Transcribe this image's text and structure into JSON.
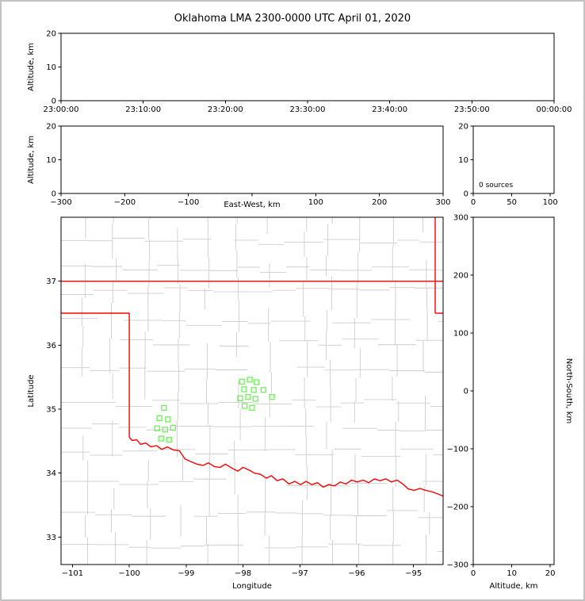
{
  "title": "Oklahoma LMA 2300-0000 UTC April 01, 2020",
  "colors": {
    "background": "#ffffff",
    "frame_border": "#c3c3c3",
    "axis": "#000000",
    "county_line": "#cccccc",
    "state_border": "#ff0000",
    "station_marker": "#6ef05a"
  },
  "chart_data": [
    {
      "id": "altitude_time",
      "type": "scatter",
      "ylabel": "Altitude, km",
      "ylim": [
        0,
        20
      ],
      "yticks": [
        0,
        10,
        20
      ],
      "xtick_labels": [
        "23:00:00",
        "23:10:00",
        "23:20:00",
        "23:30:00",
        "23:40:00",
        "23:50:00",
        "00:00:00"
      ],
      "points": []
    },
    {
      "id": "altitude_eastwest",
      "type": "scatter",
      "xlabel": "East-West, km",
      "ylabel": "Altitude, km",
      "xlim": [
        -300,
        300
      ],
      "xticks": [
        -300,
        -200,
        -100,
        0,
        100,
        200,
        300
      ],
      "ylim": [
        0,
        20
      ],
      "yticks": [
        0,
        10,
        20
      ],
      "points": []
    },
    {
      "id": "source_histogram",
      "type": "line",
      "xlim": [
        0,
        105
      ],
      "xticks": [
        0,
        50,
        100
      ],
      "ylim": [
        0,
        20
      ],
      "yticks": [
        0,
        10,
        20
      ],
      "annotation": "0 sources",
      "points": []
    },
    {
      "id": "plan_view_map",
      "type": "scatter",
      "xlabel": "Longitude",
      "ylabel": "Latitude",
      "xlim": [
        -101.2,
        -94.48
      ],
      "xticks": [
        -101,
        -100,
        -99,
        -98,
        -97,
        -96,
        -95
      ],
      "ylim": [
        32.57,
        38.0
      ],
      "yticks": [
        33,
        34,
        35,
        36,
        37
      ],
      "stations": [
        [
          -98.02,
          35.43
        ],
        [
          -97.88,
          35.46
        ],
        [
          -97.76,
          35.42
        ],
        [
          -97.98,
          35.31
        ],
        [
          -97.81,
          35.3
        ],
        [
          -97.64,
          35.3
        ],
        [
          -98.05,
          35.17
        ],
        [
          -97.91,
          35.19
        ],
        [
          -97.78,
          35.16
        ],
        [
          -97.49,
          35.19
        ],
        [
          -97.97,
          35.05
        ],
        [
          -97.84,
          35.02
        ],
        [
          -99.39,
          35.02
        ],
        [
          -99.47,
          34.86
        ],
        [
          -99.32,
          34.84
        ],
        [
          -99.51,
          34.7
        ],
        [
          -99.37,
          34.68
        ],
        [
          -99.23,
          34.71
        ],
        [
          -99.44,
          34.54
        ],
        [
          -99.3,
          34.52
        ]
      ],
      "state_border_lines": [
        [
          [
            -101.2,
            37.0
          ],
          [
            -94.48,
            37.0
          ]
        ],
        [
          [
            -101.2,
            36.5
          ],
          [
            -100.0,
            36.5
          ]
        ],
        [
          [
            -100.0,
            36.5
          ],
          [
            -100.0,
            34.56
          ]
        ],
        [
          [
            -94.62,
            38.0
          ],
          [
            -94.62,
            36.5
          ]
        ],
        [
          [
            -94.62,
            36.5
          ],
          [
            -94.48,
            36.5
          ]
        ],
        [
          [
            -100.0,
            34.56
          ],
          [
            -99.95,
            34.51
          ],
          [
            -99.87,
            34.52
          ],
          [
            -99.8,
            34.45
          ],
          [
            -99.71,
            34.47
          ],
          [
            -99.62,
            34.41
          ],
          [
            -99.52,
            34.43
          ],
          [
            -99.43,
            34.37
          ],
          [
            -99.33,
            34.41
          ],
          [
            -99.22,
            34.36
          ],
          [
            -99.12,
            34.35
          ],
          [
            -99.02,
            34.22
          ],
          [
            -98.92,
            34.18
          ],
          [
            -98.81,
            34.14
          ],
          [
            -98.7,
            34.12
          ],
          [
            -98.61,
            34.16
          ],
          [
            -98.5,
            34.1
          ],
          [
            -98.4,
            34.09
          ],
          [
            -98.31,
            34.14
          ],
          [
            -98.2,
            34.08
          ],
          [
            -98.09,
            34.03
          ],
          [
            -98.0,
            34.09
          ],
          [
            -97.9,
            34.05
          ],
          [
            -97.8,
            34.0
          ],
          [
            -97.69,
            33.98
          ],
          [
            -97.59,
            33.92
          ],
          [
            -97.5,
            33.96
          ],
          [
            -97.4,
            33.88
          ],
          [
            -97.3,
            33.91
          ],
          [
            -97.19,
            33.83
          ],
          [
            -97.09,
            33.87
          ],
          [
            -96.99,
            33.82
          ],
          [
            -96.89,
            33.87
          ],
          [
            -96.79,
            33.82
          ],
          [
            -96.69,
            33.85
          ],
          [
            -96.59,
            33.78
          ],
          [
            -96.49,
            33.82
          ],
          [
            -96.39,
            33.8
          ],
          [
            -96.29,
            33.86
          ],
          [
            -96.19,
            33.83
          ],
          [
            -96.09,
            33.89
          ],
          [
            -95.99,
            33.86
          ],
          [
            -95.89,
            33.89
          ],
          [
            -95.79,
            33.85
          ],
          [
            -95.69,
            33.91
          ],
          [
            -95.59,
            33.88
          ],
          [
            -95.49,
            33.91
          ],
          [
            -95.39,
            33.86
          ],
          [
            -95.29,
            33.89
          ],
          [
            -95.19,
            33.83
          ],
          [
            -95.09,
            33.75
          ],
          [
            -94.99,
            33.73
          ],
          [
            -94.89,
            33.76
          ],
          [
            -94.79,
            33.73
          ],
          [
            -94.69,
            33.71
          ],
          [
            -94.59,
            33.68
          ],
          [
            -94.48,
            33.64
          ]
        ]
      ],
      "county_grid": {
        "lon_step": 0.54,
        "lat_step": 0.44,
        "jitter": 0.12,
        "skip": 0.13,
        "seed": 42
      }
    },
    {
      "id": "northsouth_altitude",
      "type": "scatter",
      "xlabel": "Altitude, km",
      "ylabel": "North-South, km",
      "xlim": [
        0,
        21
      ],
      "xticks": [
        0,
        10,
        20
      ],
      "ylim": [
        -300,
        300
      ],
      "yticks": [
        -300,
        -200,
        -100,
        0,
        100,
        200,
        300
      ],
      "points": []
    }
  ]
}
